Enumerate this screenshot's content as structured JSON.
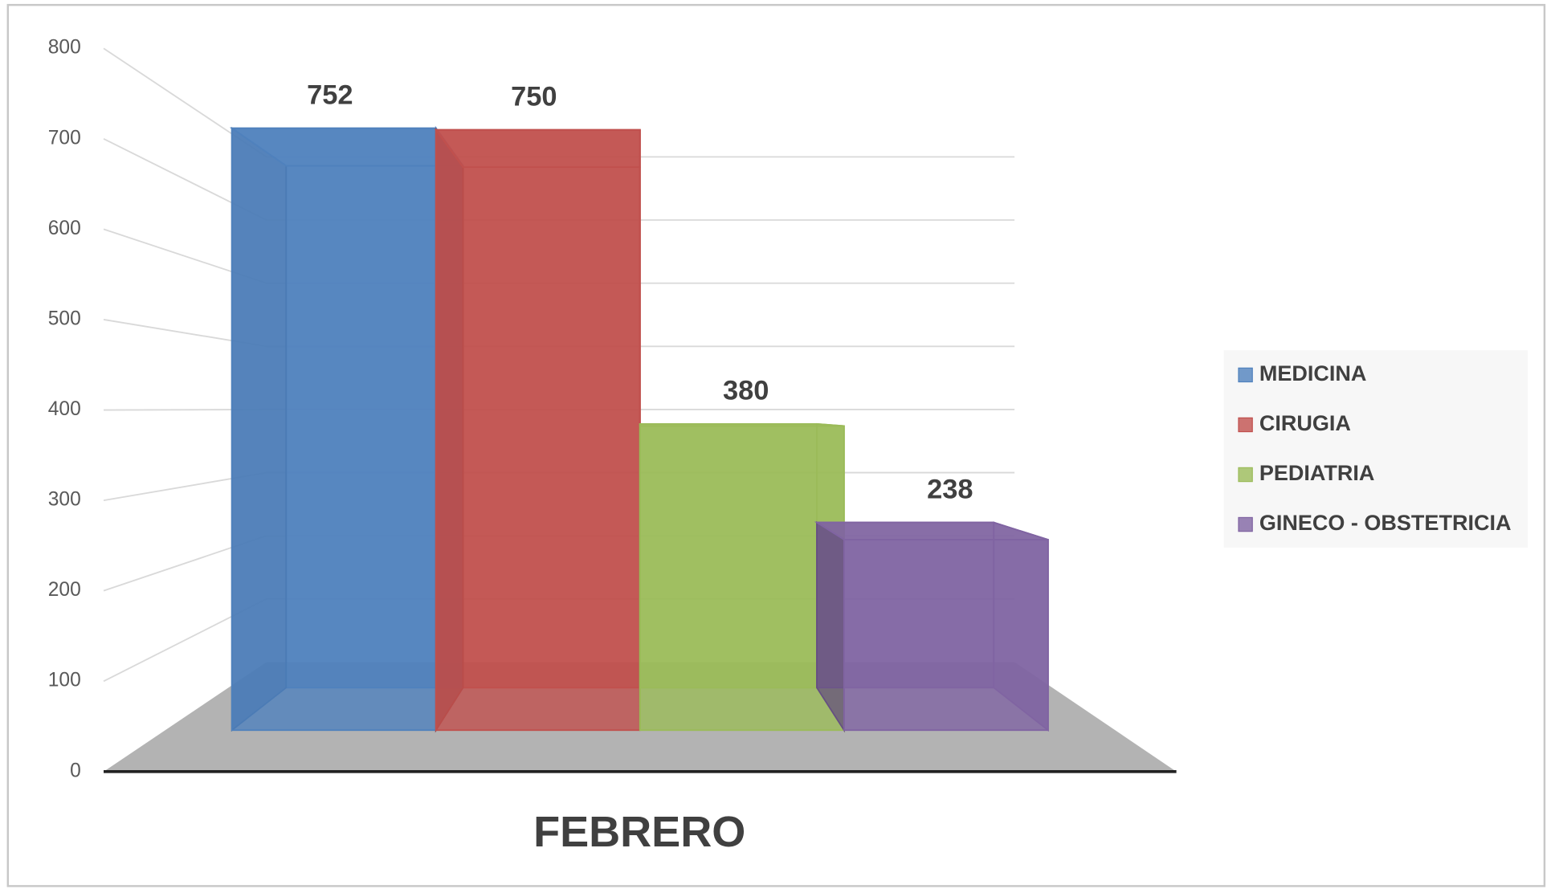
{
  "chart_data": {
    "type": "bar",
    "categories": [
      "FEBRERO"
    ],
    "series": [
      {
        "name": "MEDICINA",
        "color": "#4f81bd",
        "values": [
          752
        ]
      },
      {
        "name": "CIRUGIA",
        "color": "#c0504d",
        "values": [
          750
        ]
      },
      {
        "name": "PEDIATRIA",
        "color": "#9bbb59",
        "values": [
          380
        ]
      },
      {
        "name": "GINECO - OBSTETRICIA",
        "color": "#8064a2",
        "values": [
          238
        ]
      }
    ],
    "ylim": [
      0,
      800
    ],
    "yticks": [
      0,
      100,
      200,
      300,
      400,
      500,
      600,
      700,
      800
    ],
    "grid": true,
    "legend": "right"
  }
}
